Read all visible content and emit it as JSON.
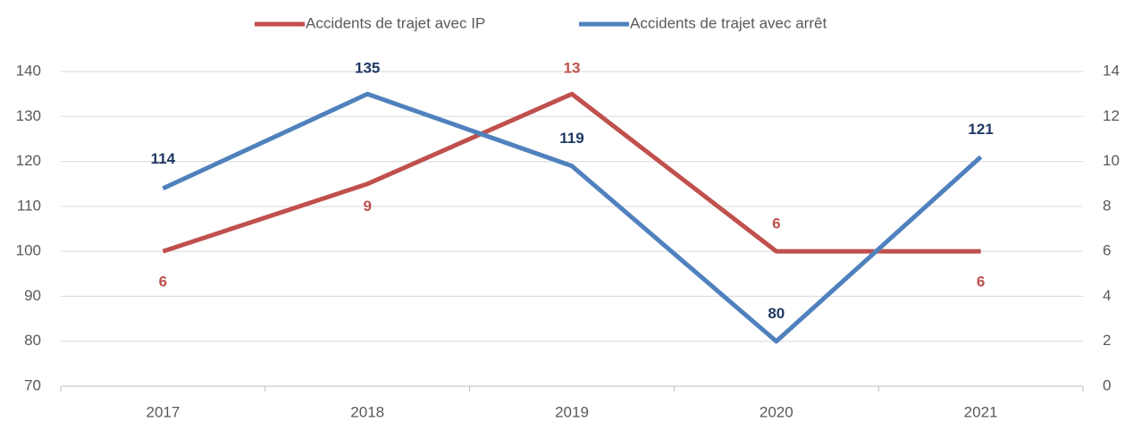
{
  "chart_data": {
    "type": "line",
    "categories": [
      "2017",
      "2018",
      "2019",
      "2020",
      "2021"
    ],
    "series": [
      {
        "name": "Accidents de trajet avec IP",
        "color": "#c0504d",
        "label_color": "#c0504d",
        "axis": "y2",
        "values": [
          6,
          9,
          13,
          6,
          6
        ]
      },
      {
        "name": "Accidents de trajet avec arrêt",
        "color": "#4f81bd",
        "label_color": "#1f3864",
        "values": [
          114,
          135,
          119,
          80,
          121
        ]
      }
    ],
    "ylim": [
      70,
      140
    ],
    "yticks": [
      70,
      80,
      90,
      100,
      110,
      120,
      130,
      140
    ],
    "y2lim": [
      0,
      14
    ],
    "y2ticks": [
      0,
      2,
      4,
      6,
      8,
      10,
      12,
      14
    ],
    "grid": true,
    "legend": "top"
  }
}
